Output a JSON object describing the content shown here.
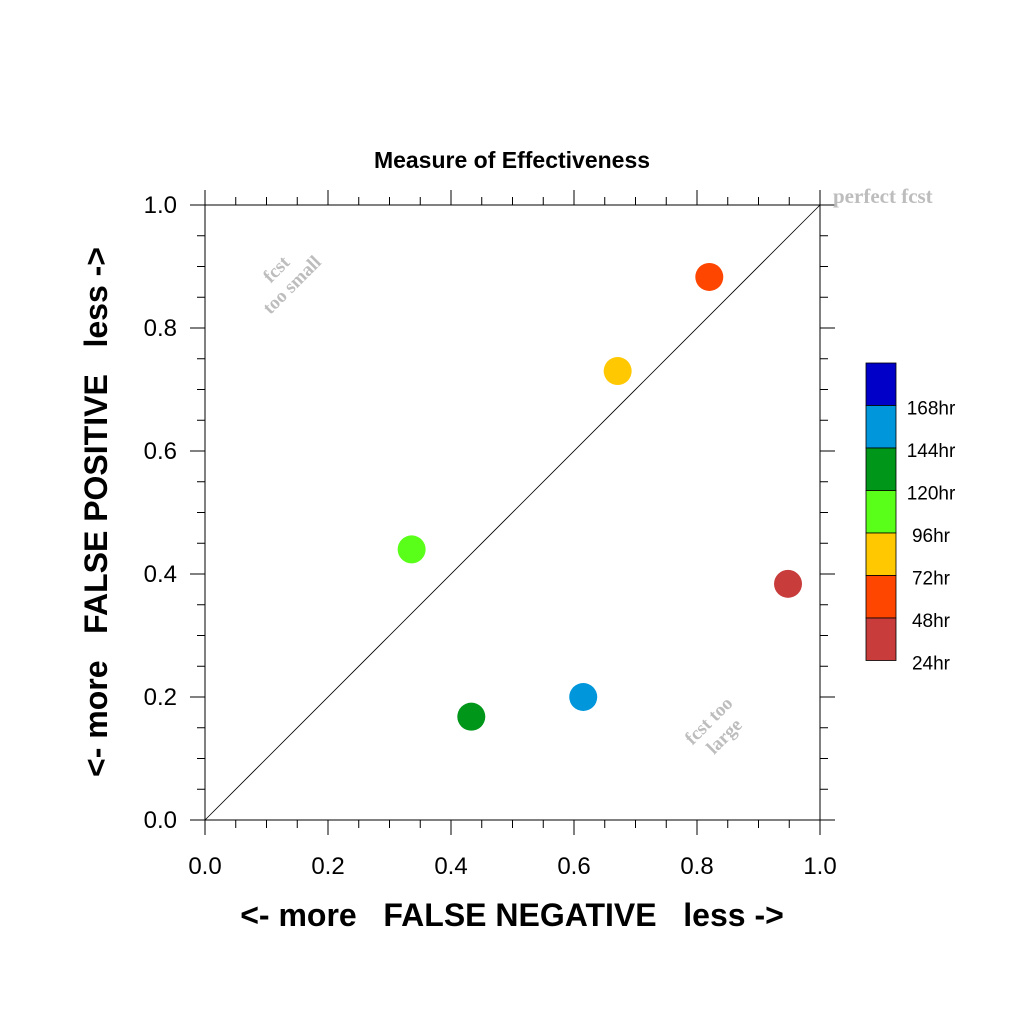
{
  "chart_data": {
    "type": "scatter",
    "title": "Measure of Effectiveness",
    "xlabel": "<- more   FALSE NEGATIVE   less ->",
    "ylabel": "<- more   FALSE POSITIVE   less ->",
    "xlim": [
      0.0,
      1.0
    ],
    "ylim": [
      0.0,
      1.0
    ],
    "x_ticks": [
      "0.0",
      "0.2",
      "0.4",
      "0.6",
      "0.8",
      "1.0"
    ],
    "y_ticks": [
      "0.0",
      "0.2",
      "0.4",
      "0.6",
      "0.8",
      "1.0"
    ],
    "grid": false,
    "diagonal_reference_line": true,
    "legend_placement": "right",
    "annotations": {
      "perfect": "perfect fcst",
      "too_small": [
        "fcst",
        "too small"
      ],
      "too_large": [
        "fcst too",
        "large"
      ]
    },
    "series": [
      {
        "name": "168hr",
        "color": "#0000c8",
        "points": []
      },
      {
        "name": "144hr",
        "color": "#0096dc",
        "points": [
          [
            0.615,
            0.2
          ]
        ]
      },
      {
        "name": "120hr",
        "color": "#009619",
        "points": [
          [
            0.433,
            0.168
          ]
        ]
      },
      {
        "name": "96hr",
        "color": "#5aff19",
        "points": [
          [
            0.336,
            0.44
          ]
        ]
      },
      {
        "name": "72hr",
        "color": "#ffc800",
        "points": [
          [
            0.671,
            0.73
          ]
        ]
      },
      {
        "name": "48hr",
        "color": "#ff4600",
        "points": [
          [
            0.82,
            0.883
          ]
        ]
      },
      {
        "name": "24hr",
        "color": "#c83c3c",
        "points": [
          [
            0.948,
            0.384
          ]
        ]
      }
    ]
  }
}
